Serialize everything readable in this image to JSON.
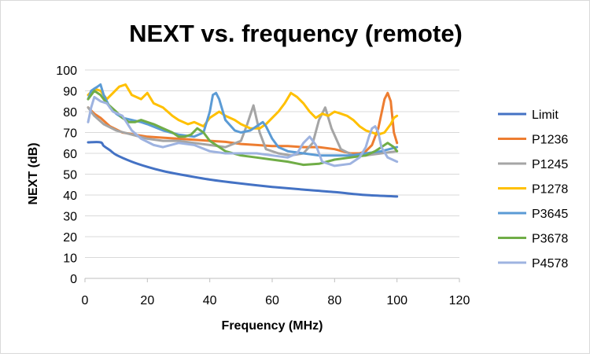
{
  "chart_data": {
    "type": "line",
    "title": "NEXT vs. frequency (remote)",
    "xlabel": "Frequency (MHz)",
    "ylabel": "NEXT (dB)",
    "xlim": [
      0,
      120
    ],
    "ylim": [
      0,
      100
    ],
    "x_ticks": [
      0,
      20,
      40,
      60,
      80,
      100,
      120
    ],
    "y_ticks": [
      0,
      10,
      20,
      30,
      40,
      50,
      60,
      70,
      80,
      90,
      100
    ],
    "x_tick_labels": [
      "0",
      "20",
      "40",
      "60",
      "80",
      "100",
      "120"
    ],
    "y_tick_labels": [
      "0",
      "10",
      "20",
      "30",
      "40",
      "50",
      "60",
      "70",
      "80",
      "90",
      "100"
    ],
    "grid": "horizontal",
    "legend_position": "right",
    "series": [
      {
        "name": "Limit",
        "color": "#4472C4",
        "smooth": true,
        "x": [
          1,
          5,
          6,
          8,
          10,
          15,
          20,
          25,
          30,
          40,
          50,
          60,
          70,
          80,
          90,
          100
        ],
        "y": [
          65.3,
          65.3,
          63.6,
          61.5,
          59.3,
          56,
          53.5,
          51.5,
          50,
          47.4,
          45.5,
          43.9,
          42.6,
          41.4,
          40,
          39.3
        ]
      },
      {
        "name": "P1236",
        "color": "#ED7D31",
        "smooth": false,
        "x": [
          1,
          3,
          5,
          8,
          12,
          16,
          20,
          25,
          30,
          35,
          40,
          45,
          50,
          55,
          60,
          65,
          70,
          75,
          80,
          85,
          88,
          90,
          92,
          94,
          96,
          97,
          98,
          99,
          100
        ],
        "y": [
          82,
          79,
          77,
          73,
          70,
          69,
          68,
          67.5,
          67,
          66.5,
          66,
          65.5,
          64.5,
          64,
          63.5,
          63.5,
          63,
          63,
          62,
          60,
          60,
          61,
          64,
          72,
          86,
          89,
          85,
          70,
          65
        ]
      },
      {
        "name": "P1245",
        "color": "#A5A5A5",
        "smooth": false,
        "x": [
          1,
          3,
          6,
          10,
          15,
          20,
          25,
          30,
          35,
          40,
          45,
          50,
          52,
          54,
          56,
          58,
          62,
          66,
          70,
          73,
          75,
          77,
          79,
          82,
          86,
          90,
          95,
          100
        ],
        "y": [
          82,
          78,
          74,
          71,
          69,
          67,
          66,
          66,
          65,
          64,
          63,
          66,
          74,
          83,
          70,
          62,
          60,
          59,
          60,
          65,
          76,
          82,
          72,
          62,
          59,
          59,
          60,
          61
        ]
      },
      {
        "name": "P1278",
        "color": "#FFC000",
        "smooth": false,
        "x": [
          1,
          3,
          5,
          7,
          9,
          11,
          13,
          15,
          18,
          20,
          22,
          25,
          28,
          30,
          33,
          35,
          38,
          40,
          43,
          45,
          48,
          50,
          53,
          56,
          58,
          60,
          62,
          64,
          66,
          68,
          70,
          72,
          74,
          76,
          78,
          80,
          82,
          84,
          86,
          88,
          90,
          92,
          94,
          96,
          98,
          99,
          100
        ],
        "y": [
          88,
          91,
          90,
          86,
          89,
          92,
          93,
          88,
          86,
          89,
          84,
          82,
          78,
          76,
          74,
          75,
          73,
          77,
          80,
          78,
          76,
          74,
          72,
          72,
          74,
          77,
          80,
          84,
          89,
          87,
          84,
          80,
          77,
          79,
          78,
          80,
          79,
          78,
          76,
          73,
          71,
          70,
          69,
          70,
          74,
          77,
          78
        ]
      },
      {
        "name": "P3645",
        "color": "#5B9BD5",
        "smooth": false,
        "x": [
          1,
          2,
          3,
          4,
          5,
          6,
          8,
          10,
          12,
          15,
          18,
          20,
          25,
          30,
          35,
          38,
          40,
          41,
          42,
          43,
          45,
          48,
          50,
          53,
          55,
          57,
          58,
          60,
          62,
          65,
          70,
          75,
          80,
          85,
          90,
          95,
          100
        ],
        "y": [
          86,
          90,
          91,
          92,
          93,
          88,
          82,
          79,
          77,
          76,
          75,
          74,
          71,
          69,
          68,
          70,
          80,
          88,
          89,
          86,
          76,
          71,
          70,
          71,
          73,
          75,
          73,
          67,
          63,
          61,
          60,
          59,
          59,
          59,
          60,
          61,
          63
        ]
      },
      {
        "name": "P3678",
        "color": "#70AD47",
        "smooth": false,
        "x": [
          1,
          3,
          5,
          7,
          10,
          12,
          14,
          16,
          18,
          20,
          22,
          25,
          28,
          30,
          32,
          34,
          36,
          38,
          40,
          45,
          50,
          55,
          60,
          65,
          70,
          75,
          80,
          85,
          90,
          93,
          95,
          97,
          99,
          100
        ],
        "y": [
          86,
          90,
          88,
          84,
          80,
          77,
          75,
          75,
          76,
          75,
          74,
          72,
          70,
          68,
          68,
          69,
          72,
          70,
          66,
          61,
          59,
          58,
          57,
          56,
          54.5,
          55,
          57,
          58,
          59,
          61,
          63,
          65,
          63,
          61
        ]
      },
      {
        "name": "P4578",
        "color": "#9EB3E0",
        "smooth": false,
        "x": [
          1,
          2,
          3,
          5,
          7,
          9,
          12,
          15,
          18,
          22,
          25,
          30,
          35,
          40,
          45,
          50,
          55,
          60,
          65,
          68,
          70,
          72,
          74,
          76,
          80,
          85,
          88,
          90,
          91,
          92,
          93,
          94,
          95,
          97,
          100
        ],
        "y": [
          75,
          82,
          87,
          85,
          84,
          80,
          78,
          71,
          67,
          64,
          63,
          65,
          64,
          61,
          60,
          60,
          60,
          59,
          58,
          60,
          65,
          68,
          64,
          56,
          54,
          55,
          58,
          63,
          68,
          72,
          73,
          70,
          63,
          58,
          56
        ]
      }
    ]
  }
}
